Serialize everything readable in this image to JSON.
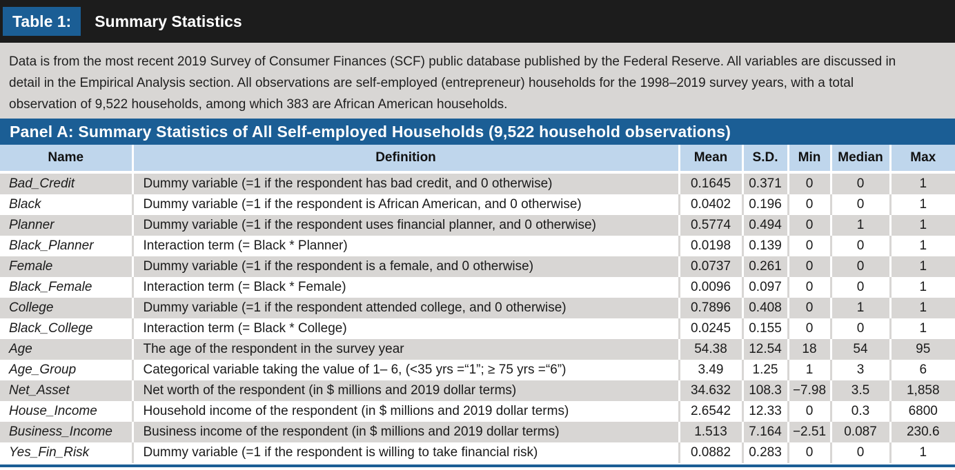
{
  "header": {
    "table_label": "Table 1:",
    "table_title": "Summary Statistics"
  },
  "description": "Data is from the most recent 2019 Survey of Consumer Finances (SCF) public database published by the Federal Reserve. All variables are discussed in detail in the Empirical Analysis section. All observations are self-employed (entrepreneur) households for the 1998–2019 survey years, with a total observation of 9,522 households, among which 383 are African American households.",
  "panel_title": "Panel A: Summary Statistics of All Self-employed Households (9,522 household observations)",
  "columns": [
    "Name",
    "Definition",
    "Mean",
    "S.D.",
    "Min",
    "Median",
    "Max"
  ],
  "rows": [
    {
      "name": "Bad_Credit",
      "definition": "Dummy variable (=1 if the respondent has bad credit, and 0 otherwise)",
      "mean": "0.1645",
      "sd": "0.371",
      "min": "0",
      "median": "0",
      "max": "1"
    },
    {
      "name": "Black",
      "definition": "Dummy variable (=1 if the respondent is African American, and 0 otherwise)",
      "mean": "0.0402",
      "sd": "0.196",
      "min": "0",
      "median": "0",
      "max": "1"
    },
    {
      "name": "Planner",
      "definition": "Dummy variable (=1 if the respondent uses financial planner, and 0 otherwise)",
      "mean": "0.5774",
      "sd": "0.494",
      "min": "0",
      "median": "1",
      "max": "1"
    },
    {
      "name": "Black_Planner",
      "definition": "Interaction term (= Black * Planner)",
      "mean": "0.0198",
      "sd": "0.139",
      "min": "0",
      "median": "0",
      "max": "1"
    },
    {
      "name": "Female",
      "definition": "Dummy variable (=1 if the respondent is a female, and 0 otherwise)",
      "mean": "0.0737",
      "sd": "0.261",
      "min": "0",
      "median": "0",
      "max": "1"
    },
    {
      "name": "Black_Female",
      "definition": "Interaction term (= Black * Female)",
      "mean": "0.0096",
      "sd": "0.097",
      "min": "0",
      "median": "0",
      "max": "1"
    },
    {
      "name": "College",
      "definition": "Dummy variable (=1 if the respondent attended college, and 0 otherwise)",
      "mean": "0.7896",
      "sd": "0.408",
      "min": "0",
      "median": "1",
      "max": "1"
    },
    {
      "name": "Black_College",
      "definition": "Interaction term (= Black * College)",
      "mean": "0.0245",
      "sd": "0.155",
      "min": "0",
      "median": "0",
      "max": "1"
    },
    {
      "name": "Age",
      "definition": "The age of the respondent in the survey year",
      "mean": "54.38",
      "sd": "12.54",
      "min": "18",
      "median": "54",
      "max": "95"
    },
    {
      "name": "Age_Group",
      "definition": "Categorical variable taking the value of 1– 6, (<35 yrs =“1”;  ≥ 75 yrs =“6”)",
      "mean": "3.49",
      "sd": "1.25",
      "min": "1",
      "median": "3",
      "max": "6"
    },
    {
      "name": "Net_Asset",
      "definition": "Net worth of the respondent (in $ millions and 2019 dollar terms)",
      "mean": "34.632",
      "sd": "108.3",
      "min": "−7.98",
      "median": "3.5",
      "max": "1,858"
    },
    {
      "name": "House_Income",
      "definition": "Household income of the respondent (in $ millions and 2019 dollar terms)",
      "mean": "2.6542",
      "sd": "12.33",
      "min": "0",
      "median": "0.3",
      "max": "6800"
    },
    {
      "name": "Business_Income",
      "definition": "Business income of the respondent (in $ millions and 2019 dollar terms)",
      "mean": "1.513",
      "sd": "7.164",
      "min": "−2.51",
      "median": "0.087",
      "max": "230.6"
    },
    {
      "name": "Yes_Fin_Risk",
      "definition": "Dummy variable (=1 if the respondent is willing to take financial risk)",
      "mean": "0.0882",
      "sd": "0.283",
      "min": "0",
      "median": "0",
      "max": "1"
    }
  ]
}
